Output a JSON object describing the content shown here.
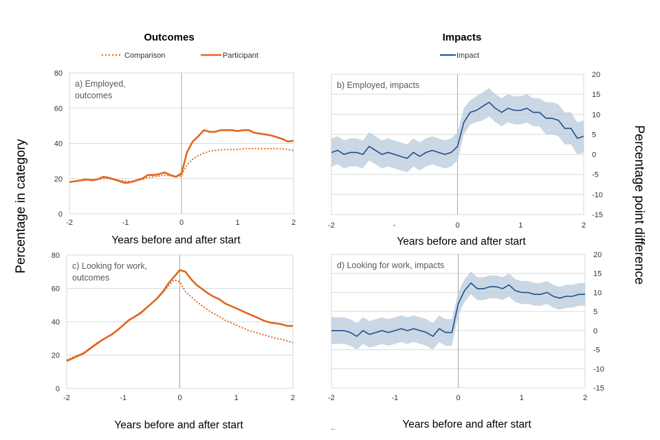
{
  "headings": {
    "outcomes": "Outcomes",
    "impacts": "Impacts"
  },
  "legend": {
    "comparison": "Comparison",
    "participant": "Participant",
    "impact": "Impact"
  },
  "y_label_left": "Percentage in category",
  "y_label_right": "Percentage point difference",
  "colors": {
    "outcome": "#E0661C",
    "impact": "#1F4E8C",
    "band": "#B8C9DC",
    "grid": "#D9D9D9",
    "zero_line": "#A6A6A6"
  },
  "chart_data": [
    {
      "id": "a",
      "type": "line",
      "title_lines": [
        "a) Employed,",
        "outcomes"
      ],
      "xlabel": "Years before and after start",
      "xlim": [
        -2,
        2
      ],
      "ylim": [
        0,
        80
      ],
      "xticks": [
        "-2",
        "-1",
        "0",
        "1",
        "2"
      ],
      "yticks": [
        "0",
        "20",
        "40",
        "60",
        "80"
      ],
      "grid": true,
      "x": [
        -2,
        -1.9,
        -1.8,
        -1.7,
        -1.6,
        -1.5,
        -1.4,
        -1.3,
        -1.2,
        -1.1,
        -1,
        -0.9,
        -0.8,
        -0.7,
        -0.6,
        -0.5,
        -0.4,
        -0.3,
        -0.2,
        -0.1,
        0,
        0.1,
        0.2,
        0.3,
        0.4,
        0.5,
        0.6,
        0.7,
        0.8,
        0.9,
        1,
        1.1,
        1.2,
        1.3,
        1.4,
        1.5,
        1.6,
        1.7,
        1.8,
        1.9,
        2
      ],
      "series": [
        {
          "name": "Participant",
          "style": "solid",
          "values": [
            18,
            18.5,
            19,
            19.5,
            19,
            19.5,
            21,
            20.5,
            19.5,
            18.5,
            17.5,
            18,
            19,
            20,
            22,
            22,
            22.5,
            23.5,
            22,
            21,
            23,
            35,
            41,
            44,
            47.5,
            46.5,
            46.5,
            47.5,
            47.5,
            47.5,
            47,
            47.5,
            47.5,
            46,
            45.5,
            45,
            44.5,
            43.5,
            42.5,
            41,
            41.5
          ]
        },
        {
          "name": "Comparison",
          "style": "dotted",
          "values": [
            18,
            18.5,
            19,
            19,
            19.5,
            19.5,
            20,
            20,
            19.5,
            19,
            18.5,
            18.5,
            19,
            19.5,
            20.5,
            21,
            21.5,
            22,
            21.5,
            21,
            21.5,
            28,
            31,
            33,
            34.5,
            35.5,
            36,
            36.5,
            36.5,
            36.5,
            36.5,
            37,
            37,
            37,
            37,
            37,
            37,
            37,
            37,
            36.5,
            36
          ]
        }
      ]
    },
    {
      "id": "b",
      "type": "line",
      "title_lines": [
        "b) Employed, impacts"
      ],
      "xlabel": "Years before and after start",
      "xlim": [
        -2,
        2
      ],
      "ylim": [
        -15,
        20
      ],
      "xticks": [
        "-2",
        "-",
        "0",
        "1",
        "2"
      ],
      "yticks": [
        "-15",
        "-10",
        "-5",
        "0",
        "5",
        "10",
        "15",
        "20"
      ],
      "grid": true,
      "x": [
        -2,
        -1.9,
        -1.8,
        -1.7,
        -1.6,
        -1.5,
        -1.4,
        -1.3,
        -1.2,
        -1.1,
        -1,
        -0.9,
        -0.8,
        -0.7,
        -0.6,
        -0.5,
        -0.4,
        -0.3,
        -0.2,
        -0.1,
        0,
        0.1,
        0.2,
        0.3,
        0.4,
        0.5,
        0.6,
        0.7,
        0.8,
        0.9,
        1,
        1.1,
        1.2,
        1.3,
        1.4,
        1.5,
        1.6,
        1.7,
        1.8,
        1.9,
        2
      ],
      "series": [
        {
          "name": "Impact",
          "style": "solid",
          "values": [
            0.5,
            1,
            0,
            0.5,
            0.5,
            0,
            2,
            1,
            0,
            0.5,
            0,
            -0.5,
            -1,
            0.5,
            -0.5,
            0.5,
            1,
            0.5,
            0,
            0.5,
            2,
            8,
            10.5,
            11,
            12,
            13,
            11.5,
            10.5,
            11.5,
            11,
            11,
            11.5,
            10.5,
            10.5,
            9,
            9,
            8.5,
            6.5,
            6.5,
            4,
            4.5
          ],
          "lower": [
            -3,
            -2.5,
            -3.5,
            -3,
            -3,
            -3.5,
            -1.5,
            -2.5,
            -3.5,
            -3,
            -3.5,
            -4,
            -4.5,
            -3,
            -4,
            -3,
            -2.5,
            -3,
            -3.5,
            -3,
            -1.5,
            5,
            7.5,
            8,
            8.5,
            9.5,
            8,
            7,
            8,
            7.5,
            7.5,
            8,
            7,
            7,
            5,
            5,
            4.5,
            2.5,
            2.5,
            0,
            0.5
          ],
          "upper": [
            4,
            4.5,
            3.5,
            4,
            4,
            3.5,
            5.5,
            4.5,
            3.5,
            4,
            3.5,
            3,
            2.5,
            4,
            3,
            4,
            4.5,
            4,
            3.5,
            4,
            5.5,
            11.5,
            13.5,
            14.5,
            15.5,
            16.5,
            15,
            14,
            15,
            14.5,
            14.5,
            15,
            14,
            14,
            13,
            13,
            12.5,
            10.5,
            10.5,
            8,
            8.5
          ]
        }
      ]
    },
    {
      "id": "c",
      "type": "line",
      "title_lines": [
        "c) Looking for work,",
        "outcomes"
      ],
      "xlabel": "Years before and after start",
      "xlim": [
        -2,
        2
      ],
      "ylim": [
        0,
        80
      ],
      "xticks": [
        "-2",
        "-1",
        "0",
        "1",
        "2"
      ],
      "yticks": [
        "0",
        "20",
        "40",
        "60",
        "80"
      ],
      "grid": true,
      "x": [
        -2,
        -1.9,
        -1.8,
        -1.7,
        -1.6,
        -1.5,
        -1.4,
        -1.3,
        -1.2,
        -1.1,
        -1,
        -0.9,
        -0.8,
        -0.7,
        -0.6,
        -0.5,
        -0.4,
        -0.3,
        -0.2,
        -0.1,
        0,
        0.1,
        0.2,
        0.3,
        0.4,
        0.5,
        0.6,
        0.7,
        0.8,
        0.9,
        1,
        1.1,
        1.2,
        1.3,
        1.4,
        1.5,
        1.6,
        1.7,
        1.8,
        1.9,
        2
      ],
      "series": [
        {
          "name": "Participant",
          "style": "solid",
          "values": [
            16.5,
            18,
            19.5,
            21,
            23.5,
            26,
            28.5,
            30.5,
            32.5,
            35,
            38,
            41,
            43,
            45,
            48,
            51,
            54,
            58,
            63,
            67,
            71,
            70,
            65.5,
            62,
            59.5,
            57,
            55,
            53.5,
            51,
            49.5,
            48,
            46.5,
            45,
            43.5,
            42,
            40.5,
            39.5,
            39,
            38.5,
            37.5,
            37.5
          ]
        },
        {
          "name": "Comparison",
          "style": "dotted",
          "values": [
            17,
            18.5,
            20,
            21.5,
            24,
            26.5,
            28.5,
            30.5,
            32.5,
            35,
            38,
            41,
            43,
            45.5,
            48,
            51,
            54,
            57.5,
            61.5,
            65,
            64,
            58,
            55,
            52,
            49.5,
            47,
            45,
            43,
            41,
            39.5,
            38,
            36.5,
            35,
            34,
            33,
            32,
            31,
            30,
            29.5,
            28.5,
            27.5
          ]
        }
      ]
    },
    {
      "id": "d",
      "type": "line",
      "title_lines": [
        "d) Looking for work, impacts"
      ],
      "xlabel": "Years before and after start",
      "xlim": [
        -2,
        2
      ],
      "ylim": [
        -15,
        20
      ],
      "xticks": [
        "-2",
        "-1",
        "0",
        "1",
        "2"
      ],
      "yticks": [
        "-15",
        "-10",
        "-5",
        "0",
        "5",
        "10",
        "15",
        "20"
      ],
      "grid": true,
      "x": [
        -2,
        -1.9,
        -1.8,
        -1.7,
        -1.6,
        -1.5,
        -1.4,
        -1.3,
        -1.2,
        -1.1,
        -1,
        -0.9,
        -0.8,
        -0.7,
        -0.6,
        -0.5,
        -0.4,
        -0.3,
        -0.2,
        -0.1,
        0,
        0.1,
        0.2,
        0.3,
        0.4,
        0.5,
        0.6,
        0.7,
        0.8,
        0.9,
        1,
        1.1,
        1.2,
        1.3,
        1.4,
        1.5,
        1.6,
        1.7,
        1.8,
        1.9,
        2
      ],
      "series": [
        {
          "name": "Impact",
          "style": "solid",
          "values": [
            0,
            0,
            0,
            -0.5,
            -1.5,
            0,
            -1,
            -0.5,
            0,
            -0.5,
            0,
            0.5,
            0,
            0.5,
            0,
            -0.5,
            -1.5,
            0.5,
            -0.5,
            -0.5,
            7,
            10.5,
            12.5,
            11,
            11,
            11.5,
            11.5,
            11,
            12,
            10.5,
            10,
            10,
            9.5,
            9.5,
            10,
            9,
            8.5,
            9,
            9,
            9.5,
            9.5
          ],
          "lower": [
            -3.5,
            -3.5,
            -3.5,
            -4,
            -5,
            -3.5,
            -4.5,
            -4,
            -3.5,
            -4,
            -3.5,
            -3,
            -3.5,
            -3,
            -3.5,
            -4,
            -5,
            -3,
            -4,
            -4,
            4,
            7.5,
            9.5,
            8,
            8,
            8.5,
            8.5,
            8,
            9,
            7.5,
            7,
            7,
            6.5,
            6.5,
            7,
            6,
            5.5,
            6,
            6,
            6.5,
            6.5
          ],
          "upper": [
            3.5,
            3.5,
            3.5,
            3,
            2,
            3.5,
            2.5,
            3,
            3.5,
            3,
            3.5,
            4,
            3.5,
            4,
            3.5,
            3,
            2,
            4,
            3,
            3,
            10,
            13.5,
            15.5,
            14,
            14,
            14.5,
            14.5,
            14,
            15,
            13.5,
            13,
            13,
            12.5,
            12.5,
            13,
            12,
            11.5,
            12,
            12,
            12.5,
            12.5
          ]
        }
      ]
    }
  ]
}
